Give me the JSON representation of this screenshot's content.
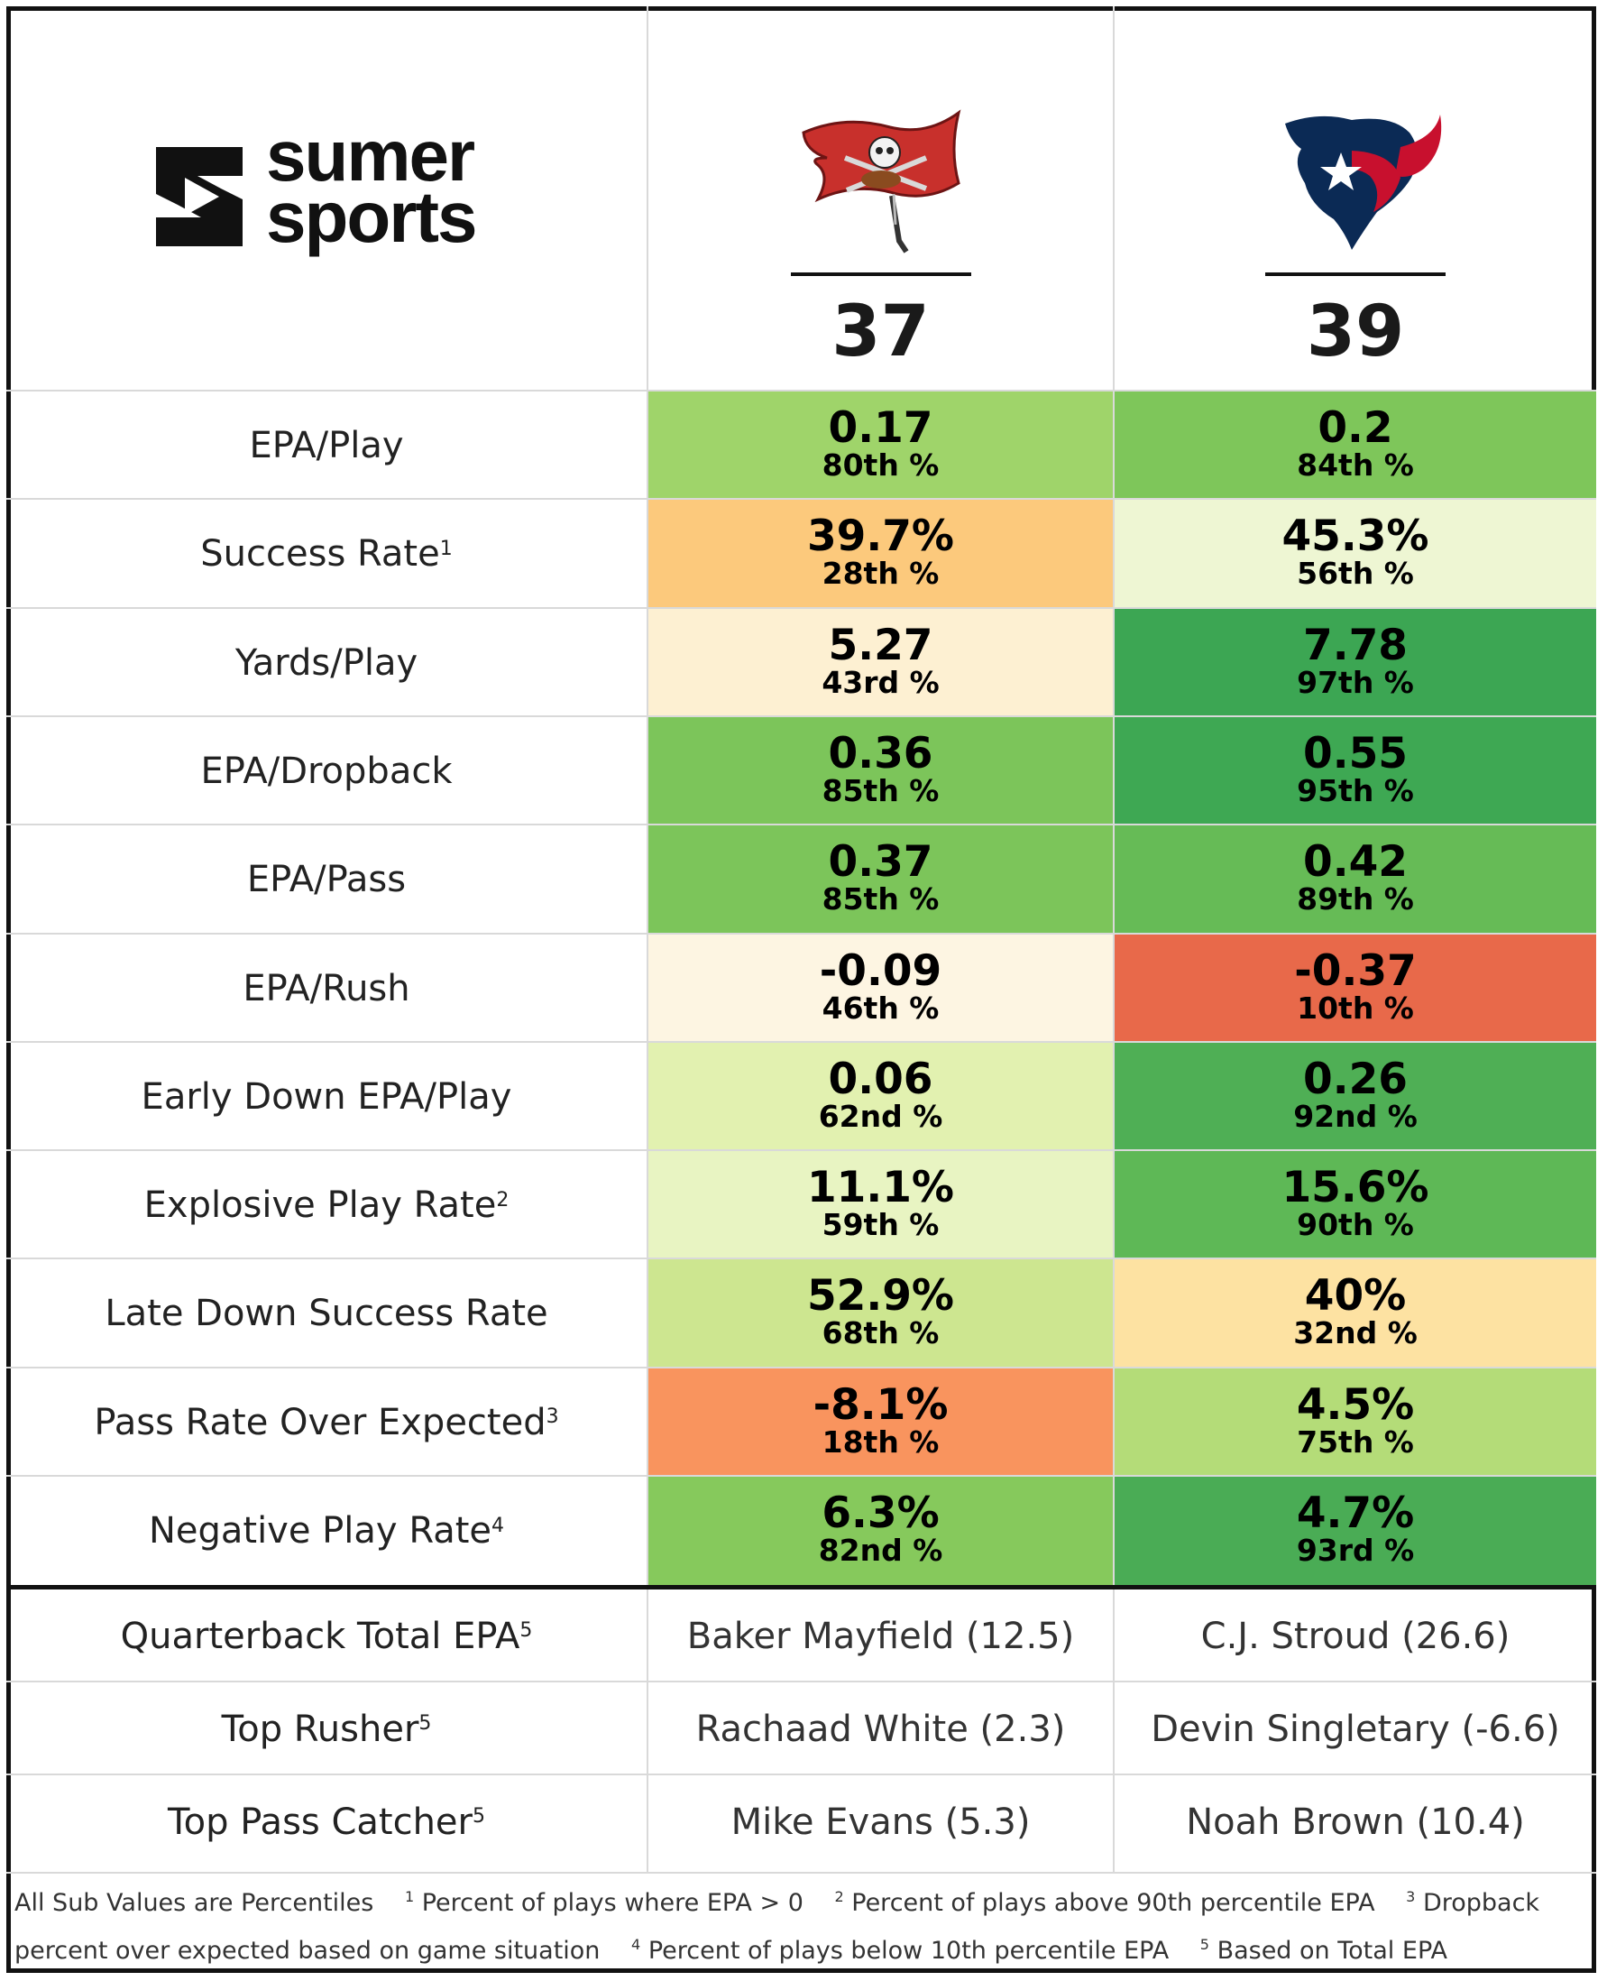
{
  "header": {
    "brand_line1": "sumer",
    "brand_line2": "sports",
    "teams": [
      {
        "icon": "buccaneers-flag-logo",
        "score": "37"
      },
      {
        "icon": "texans-bull-logo",
        "score": "39"
      }
    ]
  },
  "metrics": [
    {
      "label": "EPA/Play",
      "sup": "",
      "values": [
        {
          "main": "0.17",
          "pct": "80th %",
          "color": "#9fd46a"
        },
        {
          "main": "0.2",
          "pct": "84th %",
          "color": "#7ec65a"
        }
      ]
    },
    {
      "label": "Success Rate",
      "sup": "1",
      "values": [
        {
          "main": "39.7%",
          "pct": "28th %",
          "color": "#fcc97c"
        },
        {
          "main": "45.3%",
          "pct": "56th %",
          "color": "#eef6d3"
        }
      ]
    },
    {
      "label": "Yards/Play",
      "sup": "",
      "values": [
        {
          "main": "5.27",
          "pct": "43rd %",
          "color": "#fdf0d2"
        },
        {
          "main": "7.78",
          "pct": "97th %",
          "color": "#3ca653"
        }
      ]
    },
    {
      "label": "EPA/Dropback",
      "sup": "",
      "values": [
        {
          "main": "0.36",
          "pct": "85th %",
          "color": "#7cc55a"
        },
        {
          "main": "0.55",
          "pct": "95th %",
          "color": "#3ea853"
        }
      ]
    },
    {
      "label": "EPA/Pass",
      "sup": "",
      "values": [
        {
          "main": "0.37",
          "pct": "85th %",
          "color": "#7cc55a"
        },
        {
          "main": "0.42",
          "pct": "89th %",
          "color": "#66bb56"
        }
      ]
    },
    {
      "label": "EPA/Rush",
      "sup": "",
      "values": [
        {
          "main": "-0.09",
          "pct": "46th %",
          "color": "#fdf5e2"
        },
        {
          "main": "-0.37",
          "pct": "10th %",
          "color": "#e8694a"
        }
      ]
    },
    {
      "label": "Early Down EPA/Play",
      "sup": "",
      "values": [
        {
          "main": "0.06",
          "pct": "62nd %",
          "color": "#e2f1b0"
        },
        {
          "main": "0.26",
          "pct": "92nd %",
          "color": "#4faf55"
        }
      ]
    },
    {
      "label": "Explosive Play Rate",
      "sup": "2",
      "values": [
        {
          "main": "11.1%",
          "pct": "59th %",
          "color": "#e8f4c2"
        },
        {
          "main": "15.6%",
          "pct": "90th %",
          "color": "#5eb856"
        }
      ]
    },
    {
      "label": "Late Down Success Rate",
      "sup": "",
      "values": [
        {
          "main": "52.9%",
          "pct": "68th %",
          "color": "#cde690"
        },
        {
          "main": "40%",
          "pct": "32nd %",
          "color": "#fde2a2"
        }
      ]
    },
    {
      "label": "Pass Rate Over Expected",
      "sup": "3",
      "values": [
        {
          "main": "-8.1%",
          "pct": "18th %",
          "color": "#f9945e"
        },
        {
          "main": "4.5%",
          "pct": "75th %",
          "color": "#b4dc78"
        }
      ]
    },
    {
      "label": "Negative Play Rate",
      "sup": "4",
      "values": [
        {
          "main": "6.3%",
          "pct": "82nd %",
          "color": "#86c95c"
        },
        {
          "main": "4.7%",
          "pct": "93rd %",
          "color": "#4aac55"
        }
      ]
    }
  ],
  "players": [
    {
      "label": "Quarterback Total EPA",
      "sup": "5",
      "values": [
        "Baker Mayfield (12.5)",
        "C.J. Stroud (26.6)"
      ]
    },
    {
      "label": "Top Rusher",
      "sup": "5",
      "values": [
        "Rachaad White (2.3)",
        "Devin Singletary (-6.6)"
      ]
    },
    {
      "label": "Top Pass Catcher",
      "sup": "5",
      "values": [
        "Mike Evans (5.3)",
        "Noah Brown (10.4)"
      ]
    }
  ],
  "footnotes": {
    "intro": "All Sub Values are Percentiles",
    "notes": [
      {
        "num": "1",
        "text": "Percent of plays where EPA > 0"
      },
      {
        "num": "2",
        "text": "Percent of plays above 90th percentile EPA"
      },
      {
        "num": "3",
        "text": "Dropback percent over expected based on game situation"
      },
      {
        "num": "4",
        "text": "Percent of plays below 10th percentile EPA"
      },
      {
        "num": "5",
        "text": "Based on Total EPA"
      }
    ]
  }
}
